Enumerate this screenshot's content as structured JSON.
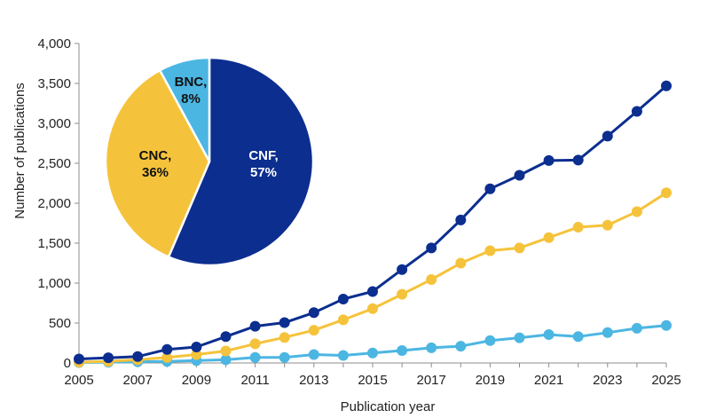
{
  "chart_data": {
    "type": "line",
    "xlabel": "Publication year",
    "ylabel": "Number of publications",
    "x": [
      2005,
      2006,
      2007,
      2008,
      2009,
      2010,
      2011,
      2012,
      2013,
      2014,
      2015,
      2016,
      2017,
      2018,
      2019,
      2020,
      2021,
      2022,
      2023,
      2024,
      2025
    ],
    "x_ticks": [
      "2005",
      "2007",
      "2009",
      "2011",
      "2013",
      "2015",
      "2017",
      "2019",
      "2021",
      "2023",
      "2025"
    ],
    "y_ticks": [
      "0",
      "500",
      "1,000",
      "1,500",
      "2,000",
      "2,500",
      "3,000",
      "3,500",
      "4,000"
    ],
    "ylim": [
      0,
      4000
    ],
    "xlim": [
      2005,
      2025
    ],
    "grid": false,
    "legend": "none",
    "series": [
      {
        "key": "cnf",
        "color": "#0b2e8f",
        "values": [
          50,
          65,
          80,
          170,
          200,
          330,
          460,
          505,
          630,
          800,
          895,
          1170,
          1440,
          1790,
          2180,
          2350,
          2535,
          2540,
          2840,
          3150,
          3470
        ]
      },
      {
        "key": "cnc",
        "color": "#f5c33b",
        "values": [
          10,
          20,
          40,
          70,
          105,
          150,
          240,
          320,
          410,
          540,
          680,
          860,
          1045,
          1250,
          1405,
          1440,
          1570,
          1700,
          1725,
          1895,
          2130
        ]
      },
      {
        "key": "bnc",
        "color": "#4cb6e2",
        "values": [
          5,
          10,
          15,
          20,
          30,
          40,
          70,
          70,
          105,
          95,
          125,
          155,
          190,
          210,
          280,
          315,
          355,
          330,
          380,
          435,
          470
        ]
      }
    ],
    "pie": {
      "slices": [
        {
          "label_line1": "CNF,",
          "label_line2": "57%",
          "value": 57,
          "color": "#0b2e8f",
          "text_color": "#ffffff"
        },
        {
          "label_line1": "CNC,",
          "label_line2": "36%",
          "value": 36,
          "color": "#f5c33b",
          "text_color": "#111111"
        },
        {
          "label_line1": "BNC,",
          "label_line2": "8%",
          "value": 8,
          "color": "#4cb6e2",
          "text_color": "#111111"
        }
      ]
    }
  }
}
